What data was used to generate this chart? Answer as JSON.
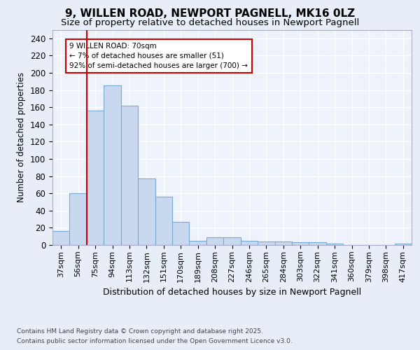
{
  "title_line1": "9, WILLEN ROAD, NEWPORT PAGNELL, MK16 0LZ",
  "title_line2": "Size of property relative to detached houses in Newport Pagnell",
  "xlabel": "Distribution of detached houses by size in Newport Pagnell",
  "ylabel": "Number of detached properties",
  "categories": [
    "37sqm",
    "56sqm",
    "75sqm",
    "94sqm",
    "113sqm",
    "132sqm",
    "151sqm",
    "170sqm",
    "189sqm",
    "208sqm",
    "227sqm",
    "246sqm",
    "265sqm",
    "284sqm",
    "303sqm",
    "322sqm",
    "341sqm",
    "360sqm",
    "379sqm",
    "398sqm",
    "417sqm"
  ],
  "values": [
    16,
    60,
    156,
    185,
    162,
    77,
    56,
    27,
    5,
    9,
    9,
    5,
    4,
    4,
    3,
    3,
    2,
    0,
    0,
    0,
    2
  ],
  "bar_color": "#c8d8ee",
  "bar_edge_color": "#7aaad0",
  "vline_color": "#cc0000",
  "annotation_text": "9 WILLEN ROAD: 70sqm\n← 7% of detached houses are smaller (51)\n92% of semi-detached houses are larger (700) →",
  "box_color": "#cc0000",
  "ylim": [
    0,
    250
  ],
  "yticks": [
    0,
    20,
    40,
    60,
    80,
    100,
    120,
    140,
    160,
    180,
    200,
    220,
    240
  ],
  "footer_line1": "Contains HM Land Registry data © Crown copyright and database right 2025.",
  "footer_line2": "Contains public sector information licensed under the Open Government Licence v3.0.",
  "bg_color": "#e8eef8",
  "plot_bg_color": "#eef2fa",
  "grid_color": "#ffffff",
  "title1_fontsize": 11,
  "title2_fontsize": 9.5
}
